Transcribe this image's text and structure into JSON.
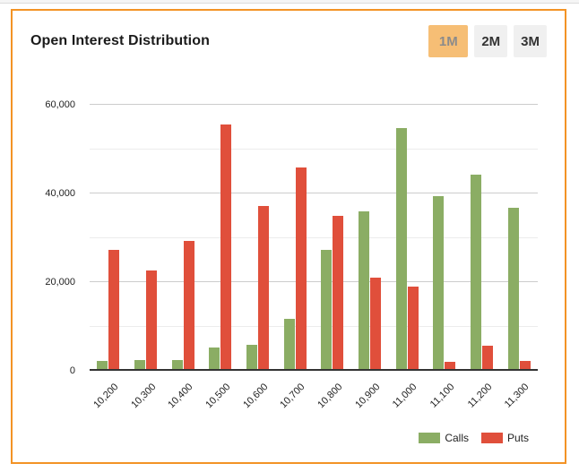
{
  "card": {
    "title": "Open Interest Distribution",
    "period_buttons": [
      {
        "label": "1M",
        "active": true
      },
      {
        "label": "2M",
        "active": false
      },
      {
        "label": "3M",
        "active": false
      }
    ]
  },
  "colors": {
    "card_border": "#F39325",
    "active_button_bg": "#F6BE75",
    "active_button_text": "#8B8B8B",
    "inactive_button_bg": "#F0F0F0",
    "inactive_button_text": "#333333",
    "calls": "#8BAD64",
    "puts": "#E04F3B",
    "gridline_major": "#CCCCCC",
    "gridline_minor": "#ECECEC",
    "axis_line": "#333333"
  },
  "chart_data": {
    "type": "bar",
    "title": "Open Interest Distribution",
    "xlabel": "",
    "ylabel": "",
    "categories": [
      "10,200",
      "10,300",
      "10,400",
      "10,500",
      "10,600",
      "10,700",
      "10,800",
      "10,900",
      "11,000",
      "11,100",
      "11,200",
      "11,300"
    ],
    "series": [
      {
        "name": "Calls",
        "color": "#8BAD64",
        "values": [
          2000,
          2200,
          2200,
          5100,
          5600,
          11500,
          27000,
          35700,
          54600,
          39100,
          44000,
          36500
        ]
      },
      {
        "name": "Puts",
        "color": "#E04F3B",
        "values": [
          27000,
          22400,
          29000,
          55400,
          36900,
          45600,
          34800,
          20800,
          18700,
          1800,
          5400,
          2100
        ]
      }
    ],
    "ylim": [
      0,
      60000
    ],
    "ytick_step": 10000,
    "ytick_label_step": 20000,
    "ytick_labels": [
      "0",
      "20,000",
      "40,000",
      "60,000"
    ],
    "grid": true,
    "legend_position": "bottom-right"
  }
}
